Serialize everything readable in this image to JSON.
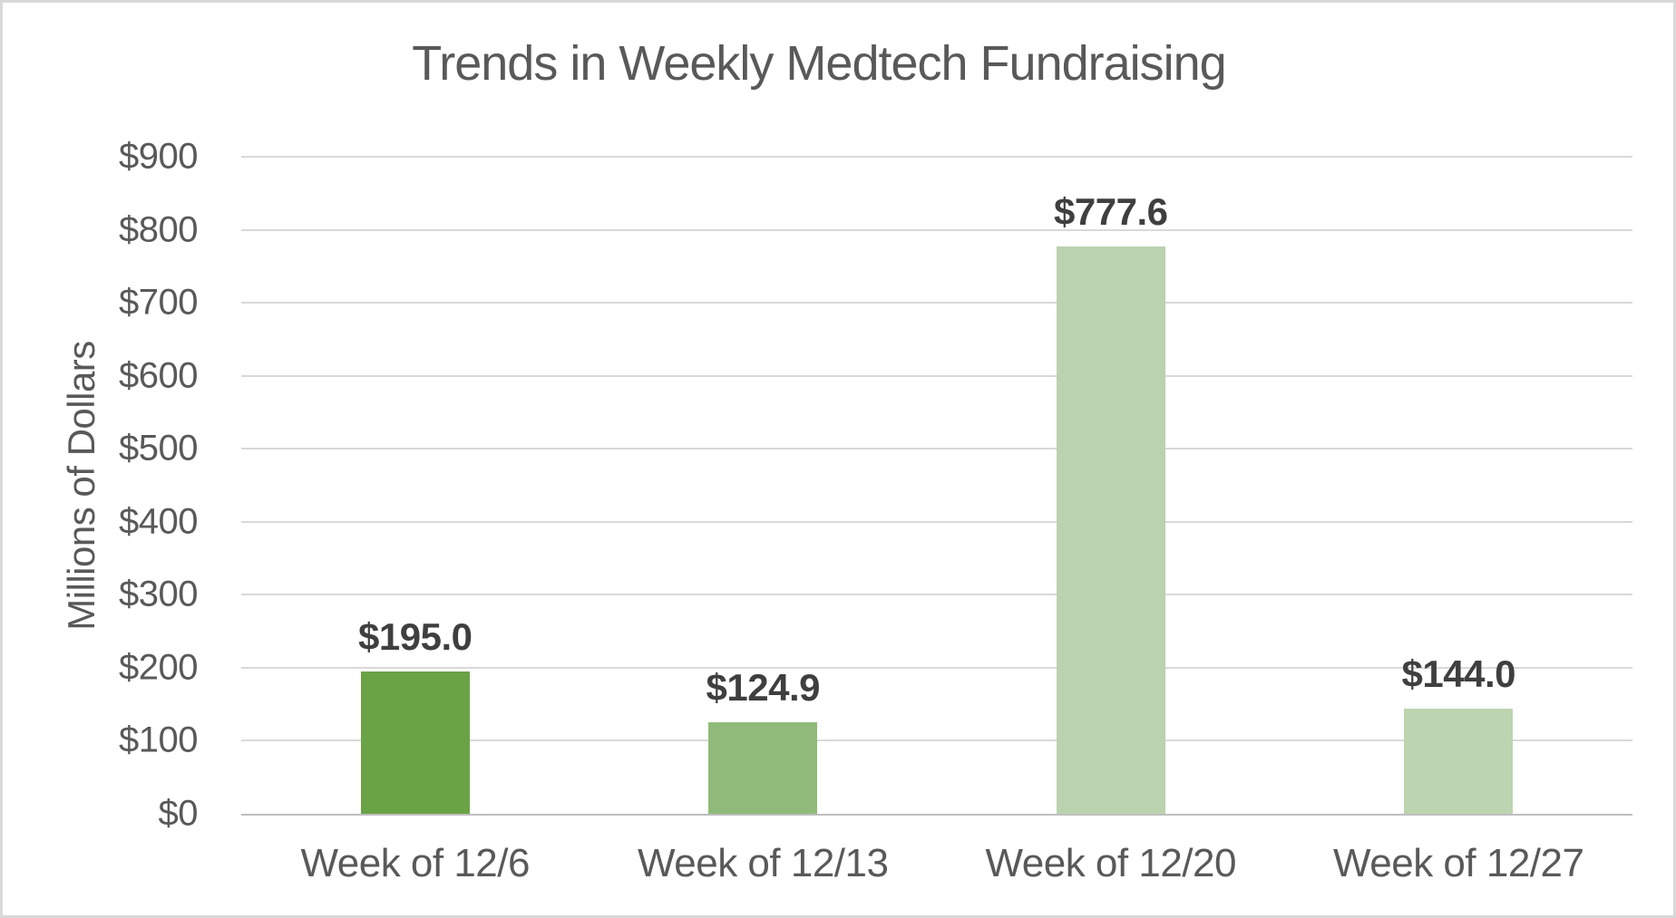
{
  "chart_data": {
    "type": "bar",
    "title": "Trends in Weekly Medtech Fundraising",
    "ylabel": "Millions of Dollars",
    "xlabel": "",
    "categories": [
      "Week of 12/6",
      "Week of 12/13",
      "Week of 12/20",
      "Week of 12/27"
    ],
    "values": [
      195.0,
      124.9,
      777.6,
      144.0
    ],
    "data_labels": [
      "$195.0",
      "$124.9",
      "$777.6",
      "$144.0"
    ],
    "bar_colors": [
      "#6AA346",
      "#90BA7A",
      "#BAD2AE",
      "#BDD4B0"
    ],
    "ylim": [
      0,
      900
    ],
    "ytick_step": 100,
    "ytick_labels": [
      "$0",
      "$100",
      "$200",
      "$300",
      "$400",
      "$500",
      "$600",
      "$700",
      "$800",
      "$900"
    ],
    "grid": true,
    "legend_position": "none",
    "colors": {
      "text": "#595959",
      "data_label": "#3F3F3F",
      "gridline": "#D9D9D9",
      "axis_line": "#BFBFBF",
      "background": "#FFFFFF",
      "border": "#D9D9D9"
    }
  }
}
